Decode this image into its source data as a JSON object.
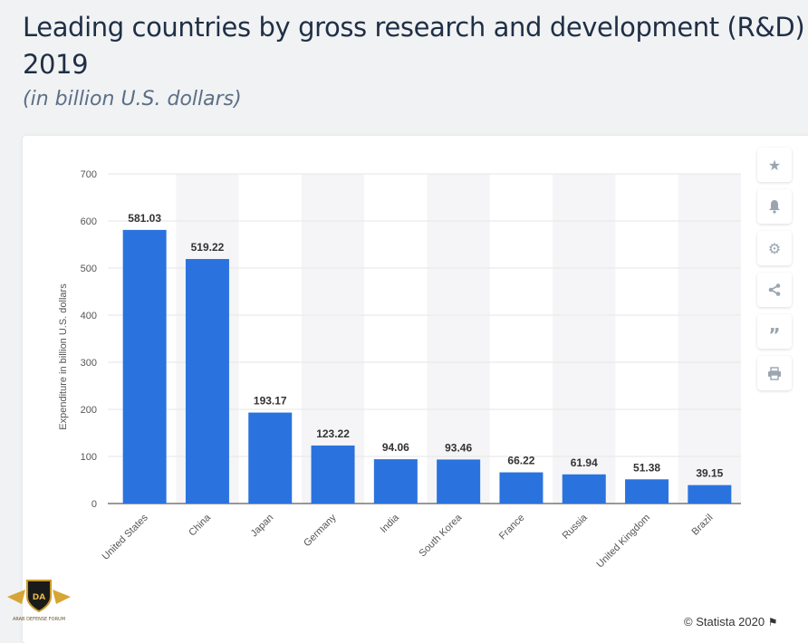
{
  "header": {
    "title": "Leading countries by gross research and development (R&D) 2019",
    "subtitle": "(in billion U.S. dollars)"
  },
  "toolbar": {
    "icons": [
      "star-icon",
      "bell-icon",
      "gear-icon",
      "share-icon",
      "quote-icon",
      "print-icon"
    ]
  },
  "footer": {
    "copyright": "© Statista 2020"
  },
  "watermark": {
    "text": "ARAB DEFENSE FORUM"
  },
  "colors": {
    "bar": "#2a73de",
    "band": "#f5f5f7",
    "grid": "#e6e6e6"
  },
  "chart_data": {
    "type": "bar",
    "categories": [
      "United States",
      "China",
      "Japan",
      "Germany",
      "India",
      "South Korea",
      "France",
      "Russia",
      "United Kingdom",
      "Brazil"
    ],
    "values": [
      581.03,
      519.22,
      193.17,
      123.22,
      94.06,
      93.46,
      66.22,
      61.94,
      51.38,
      39.15
    ],
    "data_labels": [
      "581.03",
      "519.22",
      "193.17",
      "123.22",
      "94.06",
      "93.46",
      "66.22",
      "61.94",
      "51.38",
      "39.15"
    ],
    "ylabel": "Expenditure in billion U.S. dollars",
    "ylim": [
      0,
      700
    ],
    "yticks": [
      0,
      100,
      200,
      300,
      400,
      500,
      600,
      700
    ],
    "grid": true,
    "legend": "none"
  }
}
